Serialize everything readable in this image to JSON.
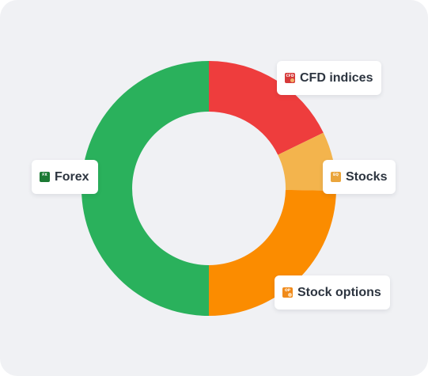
{
  "chart_data": {
    "type": "pie",
    "hole": true,
    "categories": [
      "CFD indices",
      "Stocks",
      "Stock options",
      "Forex"
    ],
    "values": [
      17.8,
      7.5,
      24.7,
      50.0
    ],
    "colors": [
      "#ee3d3d",
      "#f3b44d",
      "#fb8c00",
      "#2ab15c"
    ],
    "legend": "none"
  },
  "labels": {
    "cfd": {
      "text": "CFD indices",
      "badge_text": "CFD",
      "icon": "cfd-icon"
    },
    "stocks": {
      "text": "Stocks",
      "badge_text": "EQ",
      "icon": "equity-icon"
    },
    "forex": {
      "text": "Forex",
      "badge_text": "FX",
      "icon": "forex-icon"
    },
    "options": {
      "text": "Stock options",
      "badge_text": "OP",
      "icon": "options-icon"
    }
  },
  "colors": {
    "background": "#f0f1f4",
    "label_background": "#ffffff",
    "label_text": "#2d3540"
  }
}
